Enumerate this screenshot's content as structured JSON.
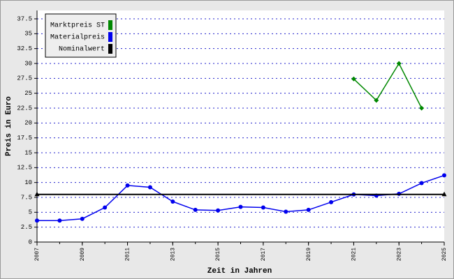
{
  "chart_data": {
    "type": "line",
    "x_label": "Zeit in Jahren",
    "y_label": "Preis in Euro",
    "x": [
      2007,
      2008,
      2009,
      2010,
      2011,
      2012,
      2013,
      2014,
      2015,
      2016,
      2017,
      2018,
      2019,
      2020,
      2021,
      2022,
      2023,
      2024,
      2025
    ],
    "xlim": [
      2007,
      2025
    ],
    "xticks": [
      2007,
      2009,
      2011,
      2013,
      2015,
      2017,
      2019,
      2021,
      2023,
      2025
    ],
    "ylim": [
      0,
      37.5
    ],
    "yticks": [
      0,
      2.5,
      5,
      7.5,
      10,
      12.5,
      15,
      17.5,
      20,
      22.5,
      25,
      27.5,
      30,
      32.5,
      35,
      37.5
    ],
    "grid": true,
    "legend": "top-left",
    "series": [
      {
        "name": "Marktpreis ST",
        "color": "#008800",
        "marker": "diamond",
        "values": [
          null,
          null,
          null,
          null,
          null,
          null,
          null,
          null,
          null,
          null,
          null,
          null,
          null,
          null,
          27.4,
          23.8,
          30,
          22.5,
          null
        ]
      },
      {
        "name": "Materialpreis",
        "color": "#0000ee",
        "marker": "circle",
        "values": [
          3.6,
          3.6,
          3.9,
          5.8,
          9.5,
          9.2,
          6.8,
          5.4,
          5.3,
          5.9,
          5.8,
          5.1,
          5.4,
          6.7,
          8.0,
          7.8,
          8.1,
          9.9,
          11.2
        ]
      },
      {
        "name": "Nominalwert",
        "color": "#000000",
        "marker": "triangle-ends",
        "values": [
          8,
          8,
          8,
          8,
          8,
          8,
          8,
          8,
          8,
          8,
          8,
          8,
          8,
          8,
          8,
          8,
          8,
          8,
          8
        ]
      }
    ]
  }
}
